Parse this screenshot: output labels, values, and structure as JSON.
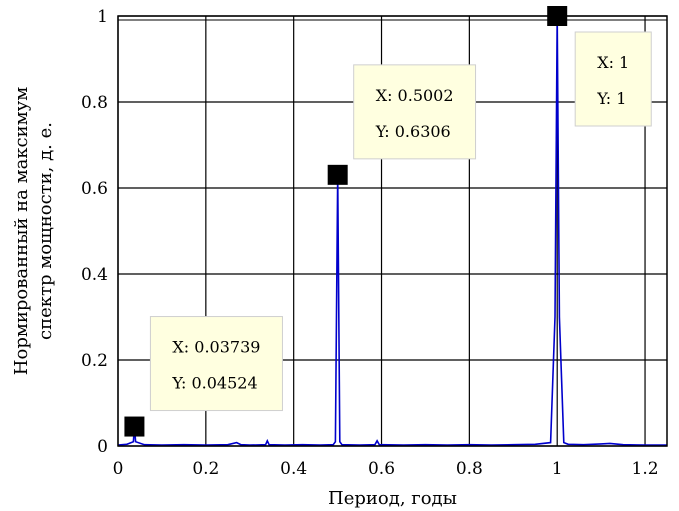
{
  "chart_data": {
    "type": "line",
    "xlabel": "Период, годы",
    "ylabel_lines": [
      "Нормированный на максимум",
      "спектр мощности, д. е."
    ],
    "xlim": [
      0,
      1.25
    ],
    "ylim": [
      0,
      1
    ],
    "xticks": [
      0,
      0.2,
      0.4,
      0.6,
      0.8,
      1,
      1.2
    ],
    "xtick_labels": [
      "0",
      "0.2",
      "0.4",
      "0.6",
      "0.8",
      "1",
      "1.2"
    ],
    "yticks": [
      0,
      0.2,
      0.4,
      0.6,
      0.8,
      1
    ],
    "ytick_labels": [
      "0",
      "0.2",
      "0.4",
      "0.6",
      "0.8",
      "1"
    ],
    "grid": true,
    "line_color": "#0000cc",
    "series": [
      {
        "x": [
          0,
          0.02,
          0.035,
          0.03739,
          0.04,
          0.06,
          0.1,
          0.15,
          0.2,
          0.25,
          0.27,
          0.28,
          0.3,
          0.336,
          0.34,
          0.344,
          0.38,
          0.42,
          0.46,
          0.49,
          0.495,
          0.5002,
          0.505,
          0.51,
          0.55,
          0.585,
          0.59,
          0.595,
          0.65,
          0.7,
          0.75,
          0.8,
          0.85,
          0.9,
          0.95,
          0.985,
          0.995,
          1.0,
          1.005,
          1.015,
          1.025,
          1.06,
          1.1,
          1.12,
          1.15,
          1.2,
          1.25
        ],
        "y": [
          0.002,
          0.004,
          0.01,
          0.04524,
          0.01,
          0.003,
          0.002,
          0.003,
          0.002,
          0.003,
          0.008,
          0.003,
          0.002,
          0.003,
          0.012,
          0.003,
          0.002,
          0.003,
          0.002,
          0.003,
          0.01,
          0.6306,
          0.01,
          0.003,
          0.002,
          0.003,
          0.012,
          0.003,
          0.002,
          0.003,
          0.002,
          0.003,
          0.002,
          0.003,
          0.004,
          0.008,
          0.3,
          1,
          0.3,
          0.008,
          0.004,
          0.003,
          0.005,
          0.006,
          0.003,
          0.002,
          0.002
        ]
      }
    ],
    "datatips": [
      {
        "x": 0.03739,
        "y": 0.04524,
        "x_text": "X: 0.03739",
        "y_text": "Y: 0.04524",
        "box_anchor": "upper-right"
      },
      {
        "x": 0.5002,
        "y": 0.6306,
        "x_text": "X: 0.5002",
        "y_text": "Y: 0.6306",
        "box_anchor": "upper-right"
      },
      {
        "x": 1,
        "y": 1,
        "x_text": "X: 1",
        "y_text": "Y: 1",
        "box_anchor": "lower-right"
      }
    ]
  }
}
